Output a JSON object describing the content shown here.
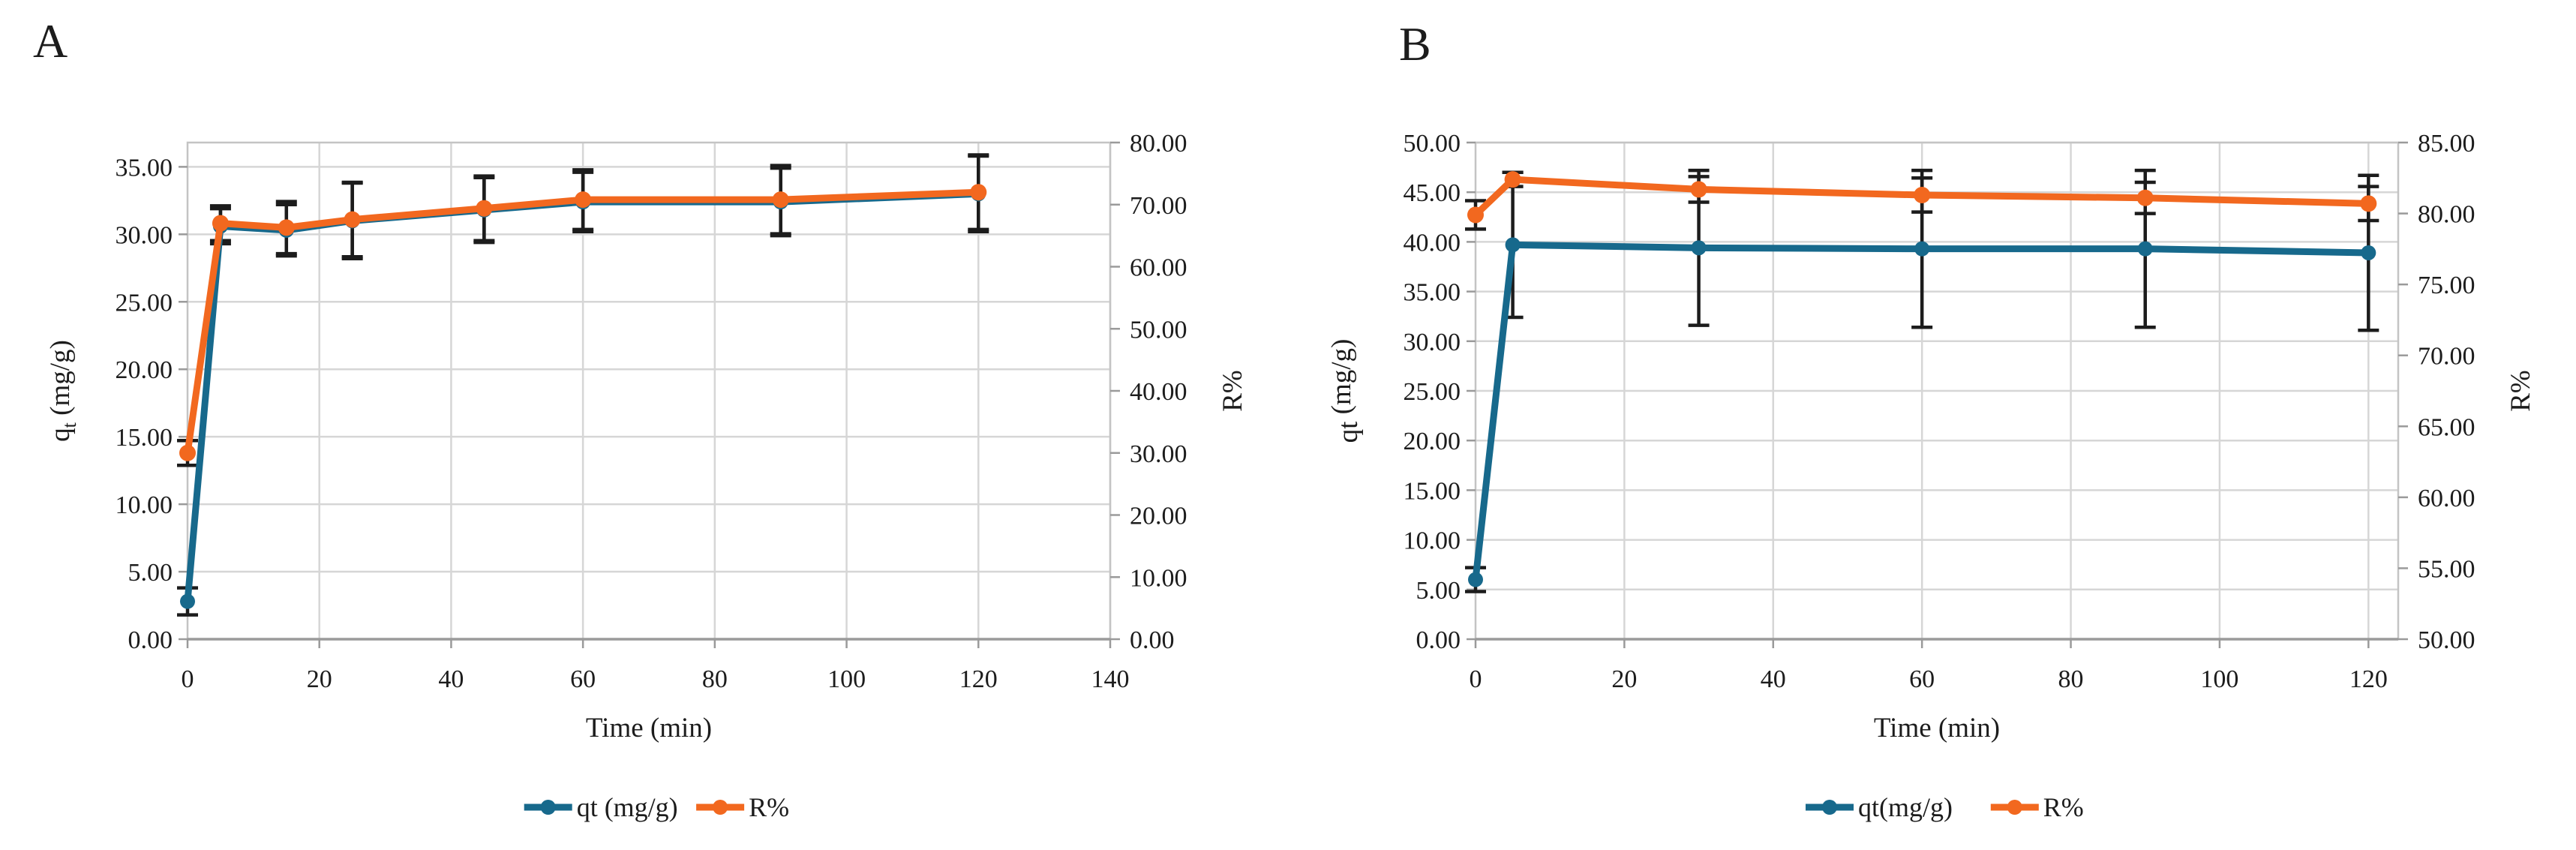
{
  "figure": {
    "background": "#ffffff",
    "text_color": "#1c1c1c",
    "grid_color": "#d6d6d6",
    "border_color": "#c4c4c4",
    "axis_line_color": "#9a9a9a",
    "error_bar_color": "#1c1c1c"
  },
  "chart_data": [
    {
      "panel": "A",
      "type": "line",
      "x": {
        "label": "Time (min)",
        "min": 0,
        "max": 140,
        "ticks": [
          0,
          20,
          40,
          60,
          80,
          100,
          120,
          140
        ]
      },
      "left_axis": {
        "label_pre": "q",
        "label_sub": "t",
        "label_post": " (mg/g)",
        "min": 0,
        "max": 35,
        "plot_max": 36.8,
        "ticks": [
          0,
          5,
          10,
          15,
          20,
          25,
          30,
          35
        ]
      },
      "right_axis": {
        "label": "R%",
        "min": 0,
        "max": 80,
        "ticks": [
          0,
          10,
          20,
          30,
          40,
          50,
          60,
          70,
          80
        ]
      },
      "grid": true,
      "legend_position": "bottom",
      "series": [
        {
          "name": "qt (mg/g)",
          "axis": "left",
          "color": "#17698c",
          "marker": "circle",
          "x": [
            0,
            5,
            15,
            25,
            45,
            60,
            90,
            120
          ],
          "y": [
            2.8,
            30.6,
            30.3,
            31.0,
            31.8,
            32.4,
            32.4,
            33.0
          ],
          "err": [
            1.0,
            1.3,
            1.9,
            2.8,
            2.4,
            2.2,
            2.5,
            2.8
          ]
        },
        {
          "name": "R%",
          "axis": "right",
          "color": "#f2681f",
          "marker": "circle",
          "x": [
            0,
            5,
            15,
            25,
            45,
            60,
            90,
            120
          ],
          "y": [
            30.0,
            67.0,
            66.3,
            67.6,
            69.4,
            70.8,
            70.8,
            72.0
          ],
          "err": [
            2.0,
            2.8,
            4.2,
            6.0,
            5.2,
            4.8,
            5.5,
            6.0
          ]
        }
      ]
    },
    {
      "panel": "B",
      "type": "line",
      "x": {
        "label": "Time (min)",
        "min": 0,
        "max": 124,
        "ticks": [
          0,
          20,
          40,
          60,
          80,
          100,
          120
        ]
      },
      "left_axis": {
        "label_pre": "qt",
        "label_sub": "",
        "label_post": " (mg/g)",
        "min": 0,
        "max": 50,
        "plot_max": 50,
        "ticks": [
          0,
          5,
          10,
          15,
          20,
          25,
          30,
          35,
          40,
          45,
          50
        ]
      },
      "right_axis": {
        "label": "R%",
        "min": 50,
        "max": 85,
        "ticks": [
          50,
          55,
          60,
          65,
          70,
          75,
          80,
          85
        ]
      },
      "grid": true,
      "legend_position": "bottom",
      "series": [
        {
          "name": "qt(mg/g)",
          "axis": "left",
          "color": "#17698c",
          "marker": "circle",
          "x": [
            0,
            5,
            30,
            60,
            90,
            120
          ],
          "y": [
            6.0,
            39.7,
            39.4,
            39.3,
            39.3,
            38.9
          ],
          "err": [
            1.2,
            7.3,
            7.8,
            7.9,
            7.9,
            7.8
          ]
        },
        {
          "name": "R%",
          "axis": "right",
          "color": "#f2681f",
          "marker": "circle",
          "x": [
            0,
            5,
            30,
            60,
            90,
            120
          ],
          "y": [
            79.9,
            82.4,
            81.7,
            81.3,
            81.1,
            80.7
          ],
          "err": [
            1.0,
            0.5,
            0.9,
            1.2,
            1.1,
            1.2
          ]
        }
      ]
    }
  ]
}
